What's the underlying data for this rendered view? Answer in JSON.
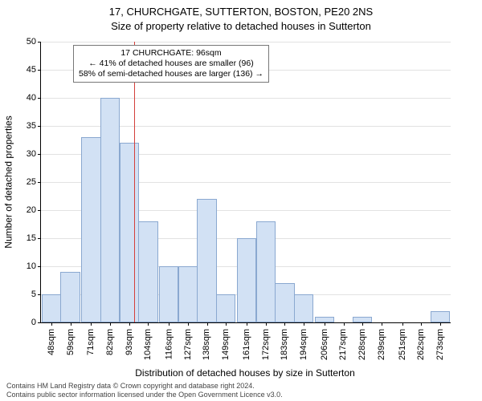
{
  "title": {
    "line1": "17, CHURCHGATE, SUTTERTON, BOSTON, PE20 2NS",
    "line2": "Size of property relative to detached houses in Sutterton",
    "fontsize": 13,
    "color": "#000000"
  },
  "chart": {
    "type": "histogram",
    "background_color": "#ffffff",
    "grid_color": "#e2e2e2",
    "axis_color": "#000000",
    "bar_fill": "#d2e1f4",
    "bar_border": "#8aa8d0",
    "marker_color": "#d43f3a",
    "annotation_border": "#777777",
    "ylim": [
      0,
      50
    ],
    "ytick_step": 5,
    "x_labels": [
      "48sqm",
      "59sqm",
      "71sqm",
      "82sqm",
      "93sqm",
      "104sqm",
      "116sqm",
      "127sqm",
      "138sqm",
      "149sqm",
      "161sqm",
      "172sqm",
      "183sqm",
      "194sqm",
      "206sqm",
      "217sqm",
      "228sqm",
      "239sqm",
      "251sqm",
      "262sqm",
      "273sqm"
    ],
    "values": [
      5,
      9,
      33,
      40,
      32,
      18,
      10,
      10,
      22,
      5,
      15,
      18,
      7,
      5,
      1,
      0,
      1,
      0,
      0,
      0,
      2
    ],
    "marker_position_sqm": 96,
    "x_range_sqm": [
      42,
      279
    ],
    "bar_band_sqm_width": 11.28,
    "tick_fontsize": 11,
    "axis_title_fontsize": 12,
    "y_axis_title": "Number of detached properties",
    "x_axis_title": "Distribution of detached houses by size in Sutterton"
  },
  "annotation": {
    "line1": "17 CHURCHGATE: 96sqm",
    "line2": "← 41% of detached houses are smaller (96)",
    "line3": "58% of semi-detached houses are larger (136) →",
    "fontsize": 10.5
  },
  "footer": {
    "line1": "Contains HM Land Registry data © Crown copyright and database right 2024.",
    "line2": "Contains public sector information licensed under the Open Government Licence v3.0.",
    "fontsize": 9,
    "color": "#444444"
  }
}
